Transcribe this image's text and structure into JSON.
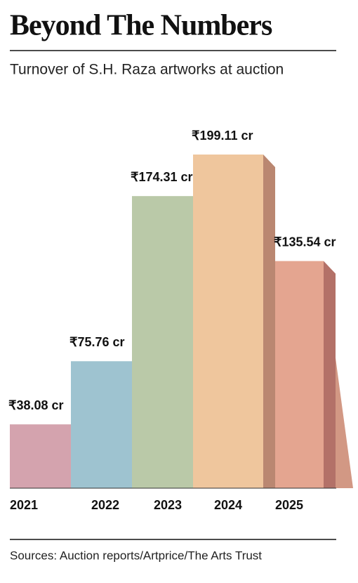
{
  "chart_data": {
    "type": "bar",
    "title": "Beyond The Numbers",
    "subtitle": "Turnover of S.H. Raza artworks at auction",
    "categories": [
      "2021",
      "2022",
      "2023",
      "2024",
      "2025"
    ],
    "values": [
      38.08,
      75.76,
      174.31,
      199.11,
      135.54
    ],
    "value_labels": [
      "₹38.08 cr",
      "₹75.76 cr",
      "₹174.31 cr",
      "₹199.11 cr",
      "₹135.54 cr"
    ],
    "colors": [
      "#d4a3ae",
      "#9ec3d0",
      "#bac9a8",
      "#efc69d",
      "#e4a590"
    ],
    "source": "Sources: Auction reports/Artprice/The Arts Trust"
  }
}
